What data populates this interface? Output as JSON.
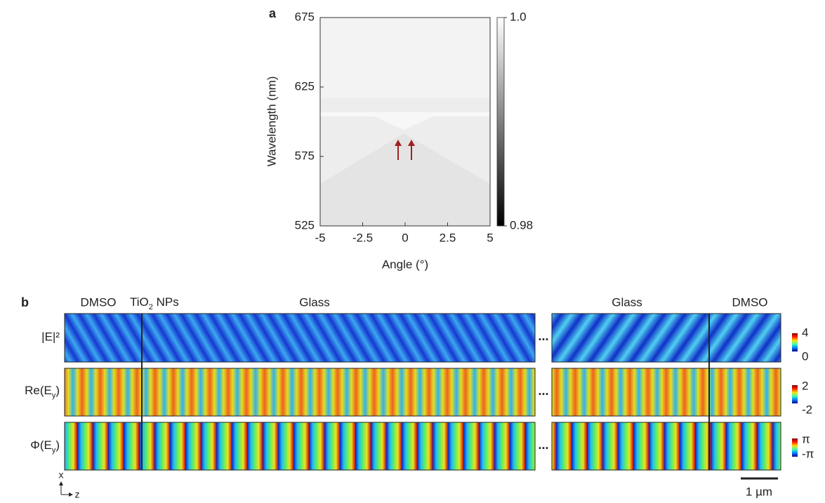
{
  "chart_data": {
    "type": "heatmap",
    "panel_label": "a",
    "x_label": "Angle (°)",
    "y_label": "Wavelength (nm)",
    "xlim": [
      -5,
      5
    ],
    "xticks": [
      -5,
      -2.5,
      0,
      2.5,
      5
    ],
    "ylim": [
      525,
      675
    ],
    "yticks": [
      525,
      575,
      625,
      675
    ],
    "colorbar": {
      "lim": [
        0.98,
        1.0
      ],
      "ticks": [
        {
          "value": 1.0,
          "label": "1.0"
        },
        0.98
      ]
    }
  },
  "figure_b": {
    "panel_label": "b",
    "regions": {
      "dmso_left": "DMSO",
      "tio2": {
        "main": "TiO",
        "sub": "2",
        "rest": " NPs"
      },
      "glass_left": "Glass",
      "glass_right": "Glass",
      "dmso_right": "DMSO"
    },
    "rows": [
      {
        "label": "|E|²",
        "colorbar_ticks": [
          "4",
          "0"
        ]
      },
      {
        "label": {
          "main": "Re(E",
          "sub": "y",
          "rest": ")"
        },
        "colorbar_ticks": [
          "2",
          "-2"
        ]
      },
      {
        "label": {
          "main": "Φ(E",
          "sub": "y",
          "rest": ")"
        },
        "colorbar_ticks": [
          "π",
          "-π"
        ]
      }
    ],
    "ellipsis": "...",
    "axis_x": "x",
    "axis_z": "z",
    "scale_bar": "1 µm"
  }
}
